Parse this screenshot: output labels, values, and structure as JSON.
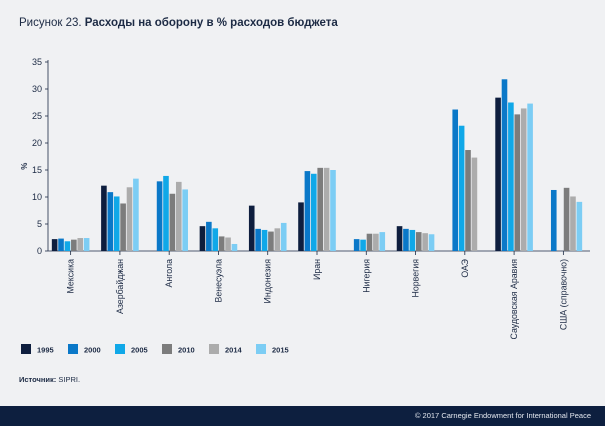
{
  "header": {
    "figure_label": "Рисунок 23.",
    "title": "Расходы на оборону в % расходов бюджета"
  },
  "source": {
    "label": "Источник:",
    "text": "SIPRI."
  },
  "footer": {
    "copyright": "© 2017 Carnegie Endowment for International Peace"
  },
  "colors": {
    "1995": "#0e1e3e",
    "2000": "#0a78c8",
    "2005": "#10a8e8",
    "2010": "#7c7c7c",
    "2014": "#acacac",
    "2015": "#7ccdf4",
    "background": "#f0f1f3",
    "footer": "#0d1f3f"
  },
  "chart_data": {
    "type": "bar",
    "title": "Расходы на оборону в % расходов бюджета",
    "xlabel": "",
    "ylabel": "%",
    "ylim": [
      0,
      35
    ],
    "yticks": [
      0,
      5,
      10,
      15,
      20,
      25,
      30,
      35
    ],
    "grid": false,
    "legend_position": "bottom-left",
    "categories": [
      "Мексика",
      "Азербайджан",
      "Ангола",
      "Венесуэла",
      "Индонезия",
      "Иран",
      "Нигерия",
      "Норвегия",
      "ОАЭ",
      "Саудовская Аравия",
      "США (справочно)"
    ],
    "series": [
      {
        "name": "1995",
        "values": [
          2.2,
          12.1,
          null,
          4.6,
          8.4,
          9.0,
          null,
          4.6,
          null,
          28.4,
          null
        ]
      },
      {
        "name": "2000",
        "values": [
          2.3,
          10.9,
          12.9,
          5.4,
          4.1,
          14.8,
          2.2,
          4.1,
          26.2,
          31.8,
          11.3
        ]
      },
      {
        "name": "2005",
        "values": [
          1.8,
          10.1,
          13.9,
          4.2,
          3.9,
          14.3,
          2.1,
          3.9,
          23.2,
          27.5,
          null
        ]
      },
      {
        "name": "2010",
        "values": [
          2.1,
          8.8,
          10.6,
          2.7,
          3.6,
          15.4,
          3.2,
          3.5,
          18.7,
          25.3,
          11.7
        ]
      },
      {
        "name": "2014",
        "values": [
          2.4,
          11.8,
          12.8,
          2.5,
          4.2,
          15.4,
          3.2,
          3.3,
          17.3,
          26.4,
          10.1
        ]
      },
      {
        "name": "2015",
        "values": [
          2.4,
          13.4,
          11.4,
          1.3,
          5.2,
          15.0,
          3.5,
          3.1,
          null,
          27.3,
          9.1
        ]
      }
    ]
  }
}
